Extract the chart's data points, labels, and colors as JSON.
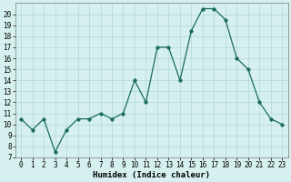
{
  "x": [
    0,
    1,
    2,
    3,
    4,
    5,
    6,
    7,
    8,
    9,
    10,
    11,
    12,
    13,
    14,
    15,
    16,
    17,
    18,
    19,
    20,
    21,
    22,
    23
  ],
  "y": [
    10.5,
    9.5,
    10.5,
    7.5,
    9.5,
    10.5,
    10.5,
    11.0,
    10.5,
    11.0,
    14.0,
    12.0,
    17.0,
    17.0,
    14.0,
    18.5,
    20.5,
    20.5,
    19.5,
    16.0,
    15.0,
    12.0,
    10.5,
    10.0
  ],
  "xlabel": "Humidex (Indice chaleur)",
  "xlim": [
    -0.5,
    23.5
  ],
  "ylim": [
    7,
    21
  ],
  "yticks": [
    7,
    8,
    9,
    10,
    11,
    12,
    13,
    14,
    15,
    16,
    17,
    18,
    19,
    20
  ],
  "xticks": [
    0,
    1,
    2,
    3,
    4,
    5,
    6,
    7,
    8,
    9,
    10,
    11,
    12,
    13,
    14,
    15,
    16,
    17,
    18,
    19,
    20,
    21,
    22,
    23
  ],
  "line_color": "#1a6b5e",
  "marker_size": 2.5,
  "background_color": "#d6f0ef",
  "grid_color": "#b0d8d4",
  "label_fontsize": 6.5,
  "tick_fontsize": 5.5
}
